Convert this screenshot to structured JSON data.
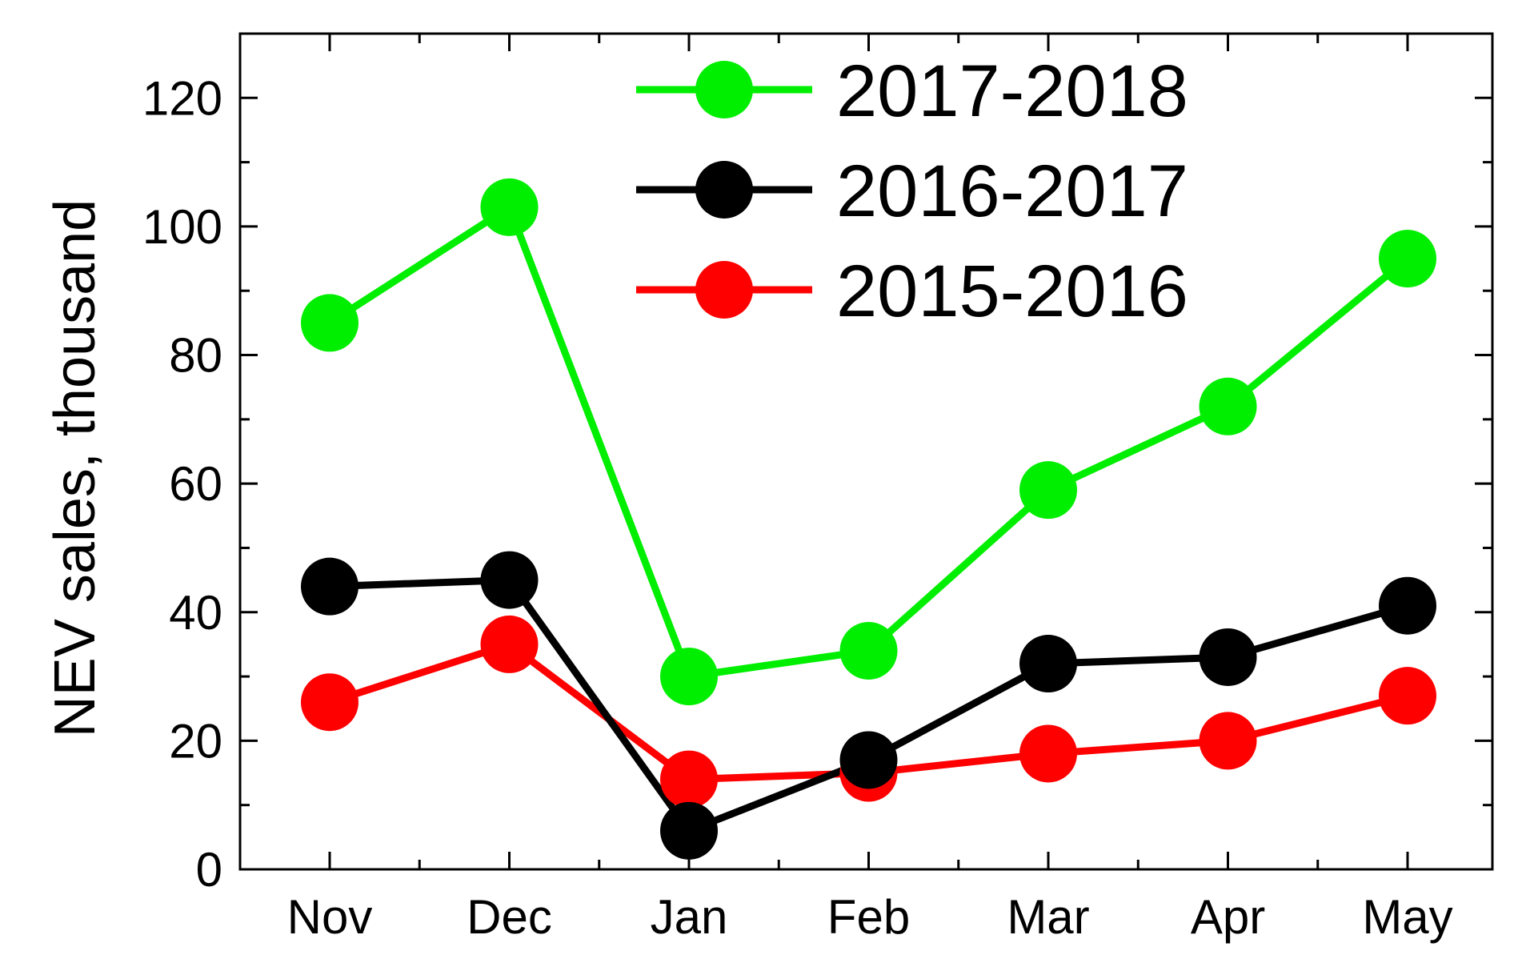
{
  "chart_data": {
    "type": "line",
    "title": "",
    "xlabel": "",
    "ylabel": "NEV sales, thousand",
    "categories": [
      "Nov",
      "Dec",
      "Jan",
      "Feb",
      "Mar",
      "Apr",
      "May"
    ],
    "ylim": [
      0,
      130
    ],
    "yticks": [
      0,
      20,
      40,
      60,
      80,
      100,
      120
    ],
    "grid": false,
    "legend_position": "top-right",
    "series": [
      {
        "name": "2017-2018",
        "color": "#00ee00",
        "values": [
          85,
          103,
          30,
          34,
          59,
          72,
          95
        ]
      },
      {
        "name": "2016-2017",
        "color": "#000000",
        "values": [
          44,
          45,
          6,
          17,
          32,
          33,
          41
        ]
      },
      {
        "name": "2015-2016",
        "color": "#ff0000",
        "values": [
          26,
          35,
          14,
          15,
          18,
          20,
          27
        ]
      }
    ]
  }
}
